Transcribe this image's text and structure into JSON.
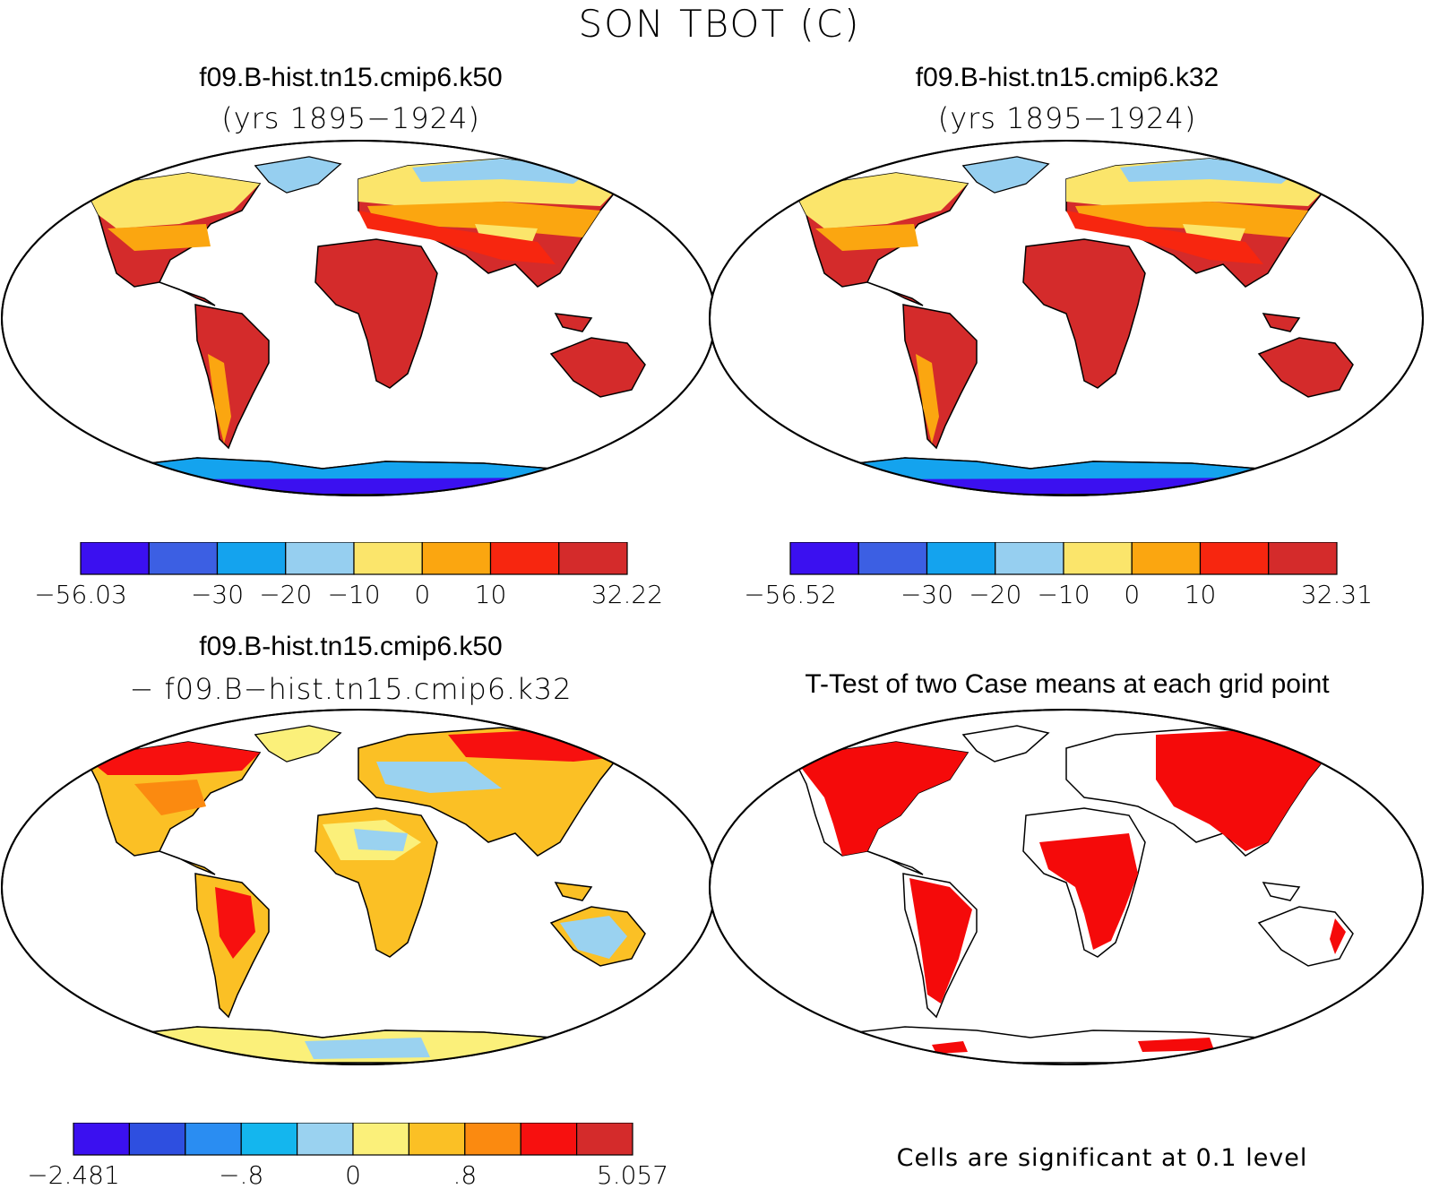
{
  "title": "SON TBOT (C)",
  "panels": [
    {
      "title": "f09.B-hist.tn15.cmip6.k50",
      "subtitle": "(yrs 1895−1924)",
      "colorbar": {
        "colors": [
          "#3b10f0",
          "#3c5fe3",
          "#14a3ee",
          "#96cff0",
          "#fbe56b",
          "#fba610",
          "#f7260f",
          "#d42b2b"
        ],
        "labels": [
          "−56.03",
          "−30",
          "−20",
          "−10",
          "0",
          "10",
          "32.22"
        ]
      }
    },
    {
      "title": "f09.B-hist.tn15.cmip6.k32",
      "subtitle": "(yrs 1895−1924)",
      "colorbar": {
        "colors": [
          "#3b10f0",
          "#3c5fe3",
          "#14a3ee",
          "#96cff0",
          "#fbe56b",
          "#fba610",
          "#f7260f",
          "#d42b2b"
        ],
        "labels": [
          "−56.52",
          "−30",
          "−20",
          "−10",
          "0",
          "10",
          "32.31"
        ]
      }
    },
    {
      "title": "f09.B-hist.tn15.cmip6.k50",
      "subtitle": "− f09.B−hist.tn15.cmip6.k32",
      "colorbar": {
        "colors": [
          "#3b10f0",
          "#2e4fe0",
          "#2a8df2",
          "#14b6ee",
          "#9ad2f0",
          "#fbf07a",
          "#fbc025",
          "#fb8a10",
          "#f7100f",
          "#d42b2b"
        ],
        "labels": [
          "−2.481",
          "−.8",
          "0",
          ".8",
          "5.057"
        ]
      }
    },
    {
      "title": "T-Test of two Case means at each grid point",
      "note": "Cells are significant at 0.1 level"
    }
  ]
}
